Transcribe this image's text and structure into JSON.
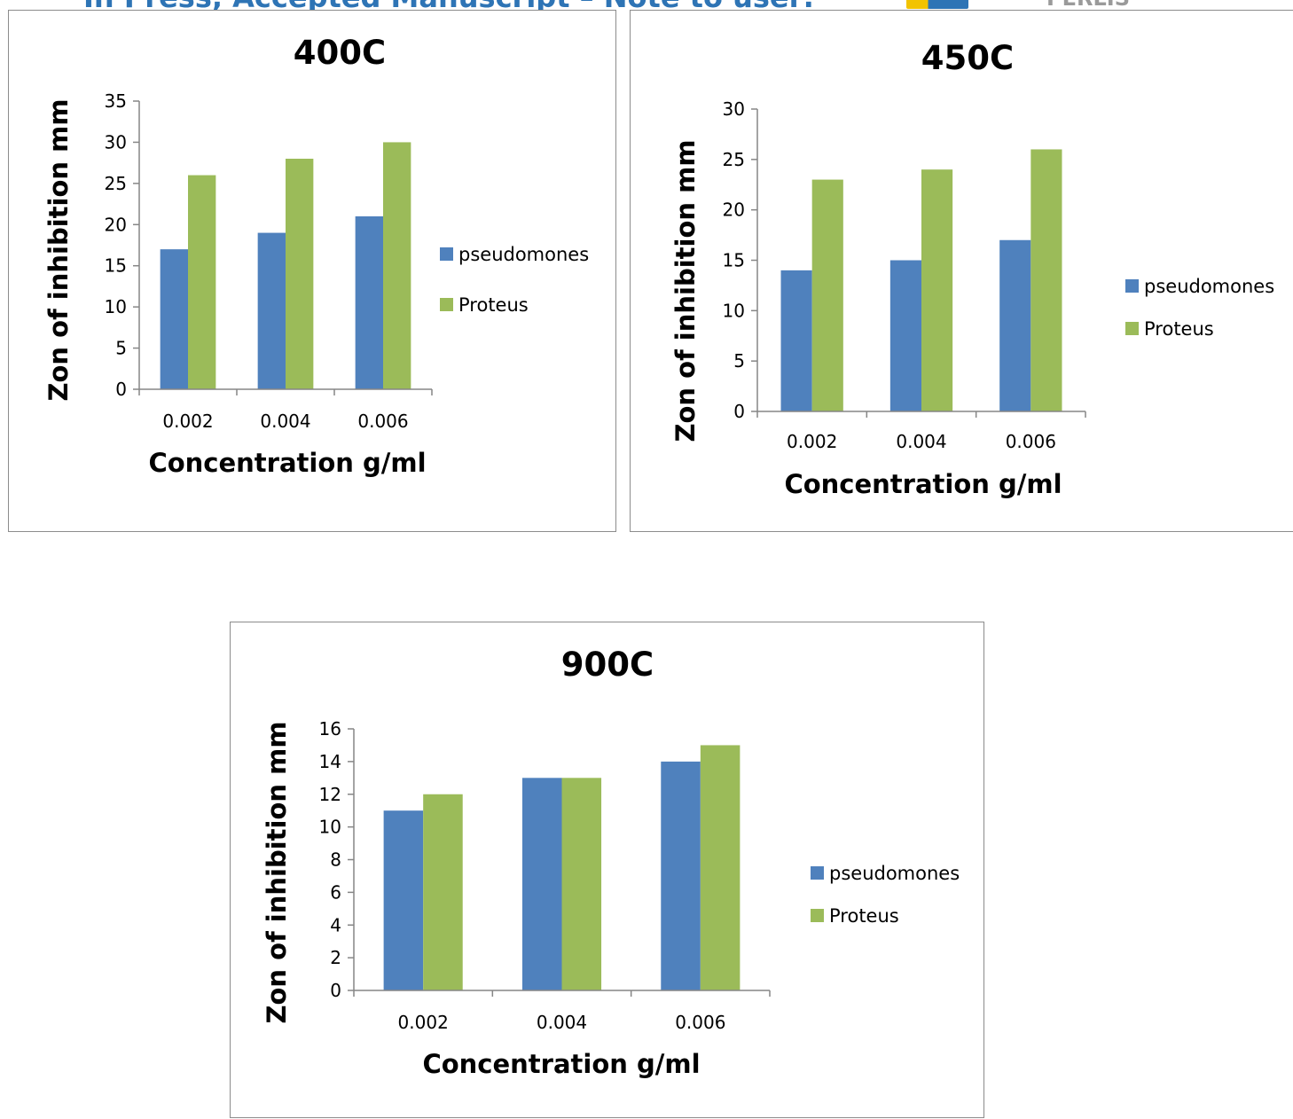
{
  "header": {
    "text": "In Press, Accepted Manuscript – Note to user:",
    "right_text": "PERLIS"
  },
  "colors": {
    "pseudomones": "#4f81bd",
    "proteus": "#9bbb59",
    "axis": "#868686",
    "frame": "#8c8c8c"
  },
  "chart_data": [
    {
      "type": "bar",
      "title": "400C",
      "xlabel": "Concentration g/ml",
      "ylabel": "Zon of inhibition mm",
      "categories": [
        "0.002",
        "0.004",
        "0.006"
      ],
      "series": [
        {
          "name": "pseudomones",
          "values": [
            17,
            19,
            21
          ]
        },
        {
          "name": "Proteus",
          "values": [
            26,
            28,
            30
          ]
        }
      ],
      "ylim": [
        0,
        35
      ],
      "ytick_step": 5,
      "yticks": [
        "0",
        "5",
        "10",
        "15",
        "20",
        "25",
        "30",
        "35"
      ],
      "legend": "right",
      "grid": false
    },
    {
      "type": "bar",
      "title": "450C",
      "xlabel": "Concentration g/ml",
      "ylabel": "Zon of inhibition mm",
      "categories": [
        "0.002",
        "0.004",
        "0.006"
      ],
      "series": [
        {
          "name": "pseudomones",
          "values": [
            14,
            15,
            17
          ]
        },
        {
          "name": "Proteus",
          "values": [
            23,
            24,
            26
          ]
        }
      ],
      "ylim": [
        0,
        30
      ],
      "ytick_step": 5,
      "yticks": [
        "0",
        "5",
        "10",
        "15",
        "20",
        "25",
        "30"
      ],
      "legend": "right",
      "grid": false
    },
    {
      "type": "bar",
      "title": "900C",
      "xlabel": "Concentration g/ml",
      "ylabel": "Zon of inhibition mm",
      "categories": [
        "0.002",
        "0.004",
        "0.006"
      ],
      "series": [
        {
          "name": "pseudomones",
          "values": [
            11,
            13,
            14
          ]
        },
        {
          "name": "Proteus",
          "values": [
            12,
            13,
            15
          ]
        }
      ],
      "ylim": [
        0,
        16
      ],
      "ytick_step": 2,
      "yticks": [
        "0",
        "2",
        "4",
        "6",
        "8",
        "10",
        "12",
        "14",
        "16"
      ],
      "legend": "right",
      "grid": false
    }
  ]
}
